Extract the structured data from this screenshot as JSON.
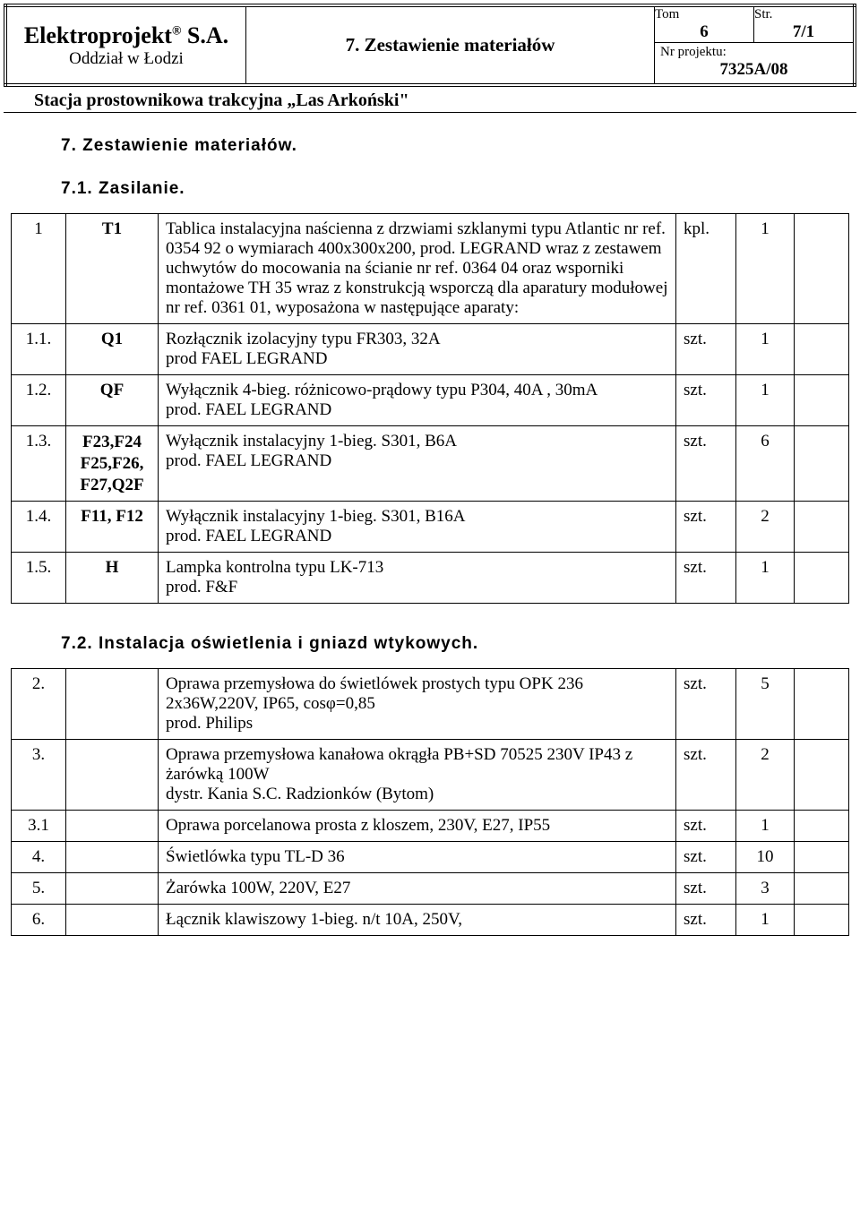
{
  "header": {
    "company": "Elektroprojekt",
    "company_suffix": "S.A.",
    "reg_mark": "®",
    "branch": "Oddział w Łodzi",
    "doc_title": "7. Zestawienie materiałów",
    "tom_label": "Tom",
    "tom_value": "6",
    "str_label": "Str.",
    "str_value": "7/1",
    "prj_label": "Nr projektu:",
    "prj_value": "7325A/08",
    "subtitle": "Stacja prostownikowa trakcyjna „Las Arkoński\""
  },
  "sections": {
    "main_head": "7. Zestawienie materiałów.",
    "s1_head": "7.1. Zasilanie.",
    "s2_head": "7.2. Instalacja oświetlenia i gniazd wtykowych."
  },
  "table1": {
    "rows": [
      {
        "num": "1",
        "sym": "T1",
        "desc": "Tablica instalacyjna naścienna z drzwiami szklanymi typu Atlantic nr ref. 0354 92 o wymiarach 400x300x200, prod. LEGRAND wraz z zestawem uchwytów do mocowania na ścianie nr ref. 0364 04 oraz wsporniki montażowe TH 35 wraz z konstrukcją wsporczą dla aparatury modułowej nr ref. 0361 01, wyposażona w następujące aparaty:",
        "unit": "kpl.",
        "qty": "1",
        "note": ""
      },
      {
        "num": "1.1.",
        "sym": "Q1",
        "desc": "Rozłącznik izolacyjny typu FR303, 32A\nprod FAEL LEGRAND",
        "unit": "szt.",
        "qty": "1",
        "note": ""
      },
      {
        "num": "1.2.",
        "sym": "QF",
        "desc": "Wyłącznik 4-bieg. różnicowo-prądowy typu P304, 40A , 30mA\nprod. FAEL LEGRAND",
        "unit": "szt.",
        "qty": "1",
        "note": ""
      },
      {
        "num": "1.3.",
        "sym": "F23,F24\nF25,F26,\nF27,Q2F",
        "desc": "Wyłącznik instalacyjny 1-bieg. S301, B6A\nprod. FAEL LEGRAND",
        "unit": "szt.",
        "qty": "6",
        "note": ""
      },
      {
        "num": "1.4.",
        "sym": "F11, F12",
        "desc": "Wyłącznik instalacyjny 1-bieg. S301, B16A\nprod. FAEL LEGRAND",
        "unit": "szt.",
        "qty": "2",
        "note": ""
      },
      {
        "num": "1.5.",
        "sym": "H",
        "desc": "Lampka kontrolna typu LK-713\nprod. F&F",
        "unit": "szt.",
        "qty": "1",
        "note": ""
      }
    ]
  },
  "table2": {
    "rows": [
      {
        "num": "2.",
        "sym": "",
        "desc": "Oprawa przemysłowa do świetlówek prostych typu OPK 236 2x36W,220V, IP65,  cosφ=0,85\nprod. Philips",
        "unit": "szt.",
        "qty": "5",
        "note": ""
      },
      {
        "num": "3.",
        "sym": "",
        "desc": "Oprawa przemysłowa kanałowa okrągła PB+SD 70525 230V IP43 z żarówką 100W\ndystr. Kania S.C. Radzionków (Bytom)",
        "unit": "szt.",
        "qty": "2",
        "note": ""
      },
      {
        "num": "3.1",
        "sym": "",
        "desc": "Oprawa porcelanowa prosta z kloszem, 230V, E27, IP55",
        "unit": "szt.",
        "qty": "1",
        "note": ""
      },
      {
        "num": "4.",
        "sym": "",
        "desc": "Świetlówka typu TL-D 36",
        "unit": "szt.",
        "qty": "10",
        "note": ""
      },
      {
        "num": "5.",
        "sym": "",
        "desc": "Żarówka 100W, 220V, E27",
        "unit": "szt.",
        "qty": "3",
        "note": ""
      },
      {
        "num": "6.",
        "sym": "",
        "desc": "Łącznik klawiszowy 1-bieg. n/t  10A, 250V,",
        "unit": "szt.",
        "qty": "1",
        "note": ""
      }
    ]
  }
}
